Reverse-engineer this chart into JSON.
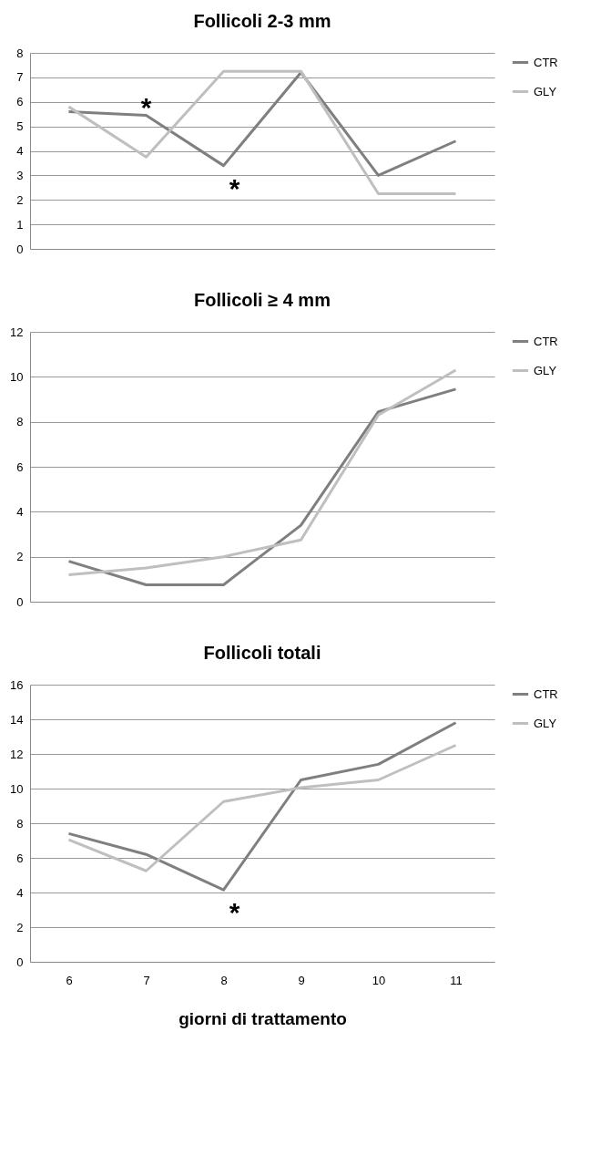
{
  "chart_data": [
    {
      "type": "line",
      "title": "Follicoli 2-3 mm",
      "categories": [
        "6",
        "7",
        "8",
        "9",
        "10",
        "11"
      ],
      "series": [
        {
          "name": "CTR",
          "color": "#7f7f7f",
          "values": [
            5.6,
            5.45,
            3.4,
            7.2,
            3.0,
            4.4
          ]
        },
        {
          "name": "GLY",
          "color": "#bfbfbf",
          "values": [
            5.8,
            3.75,
            7.25,
            7.25,
            2.25,
            2.25
          ]
        }
      ],
      "ylim": [
        0,
        8
      ],
      "yticks": [
        0,
        1,
        2,
        3,
        4,
        5,
        6,
        7,
        8
      ],
      "grid": "y",
      "legend": "right",
      "tick_labels": "y",
      "marker": "none",
      "line_style": "solid",
      "annotations": [
        {
          "text": "*",
          "x": "7",
          "y": 5.45
        },
        {
          "text": "*",
          "x": "8",
          "y": 3.4
        }
      ]
    },
    {
      "type": "line",
      "title": "Follicoli ≥ 4 mm",
      "categories": [
        "6",
        "7",
        "8",
        "9",
        "10",
        "11"
      ],
      "series": [
        {
          "name": "CTR",
          "color": "#7f7f7f",
          "values": [
            1.8,
            0.75,
            0.75,
            3.4,
            8.45,
            9.45
          ]
        },
        {
          "name": "GLY",
          "color": "#bfbfbf",
          "values": [
            1.2,
            1.5,
            2.0,
            2.75,
            8.3,
            10.3
          ]
        }
      ],
      "ylim": [
        0,
        12
      ],
      "yticks": [
        0,
        2,
        4,
        6,
        8,
        10,
        12
      ],
      "grid": "y",
      "legend": "right",
      "tick_labels": "y",
      "marker": "none",
      "line_style": "solid"
    },
    {
      "type": "line",
      "title": "Follicoli totali",
      "xlabel": "giorni di trattamento",
      "categories": [
        "6",
        "7",
        "8",
        "9",
        "10",
        "11"
      ],
      "series": [
        {
          "name": "CTR",
          "color": "#7f7f7f",
          "values": [
            7.4,
            6.2,
            4.15,
            10.5,
            11.4,
            13.8
          ]
        },
        {
          "name": "GLY",
          "color": "#bfbfbf",
          "values": [
            7.05,
            5.25,
            9.25,
            10.05,
            10.5,
            12.5
          ]
        }
      ],
      "ylim": [
        0,
        16
      ],
      "yticks": [
        0,
        2,
        4,
        6,
        8,
        10,
        12,
        14,
        16
      ],
      "grid": "y",
      "legend": "right",
      "marker": "none",
      "line_style": "solid",
      "annotations": [
        {
          "text": "*",
          "x": "8",
          "y": 4.15
        }
      ]
    }
  ]
}
